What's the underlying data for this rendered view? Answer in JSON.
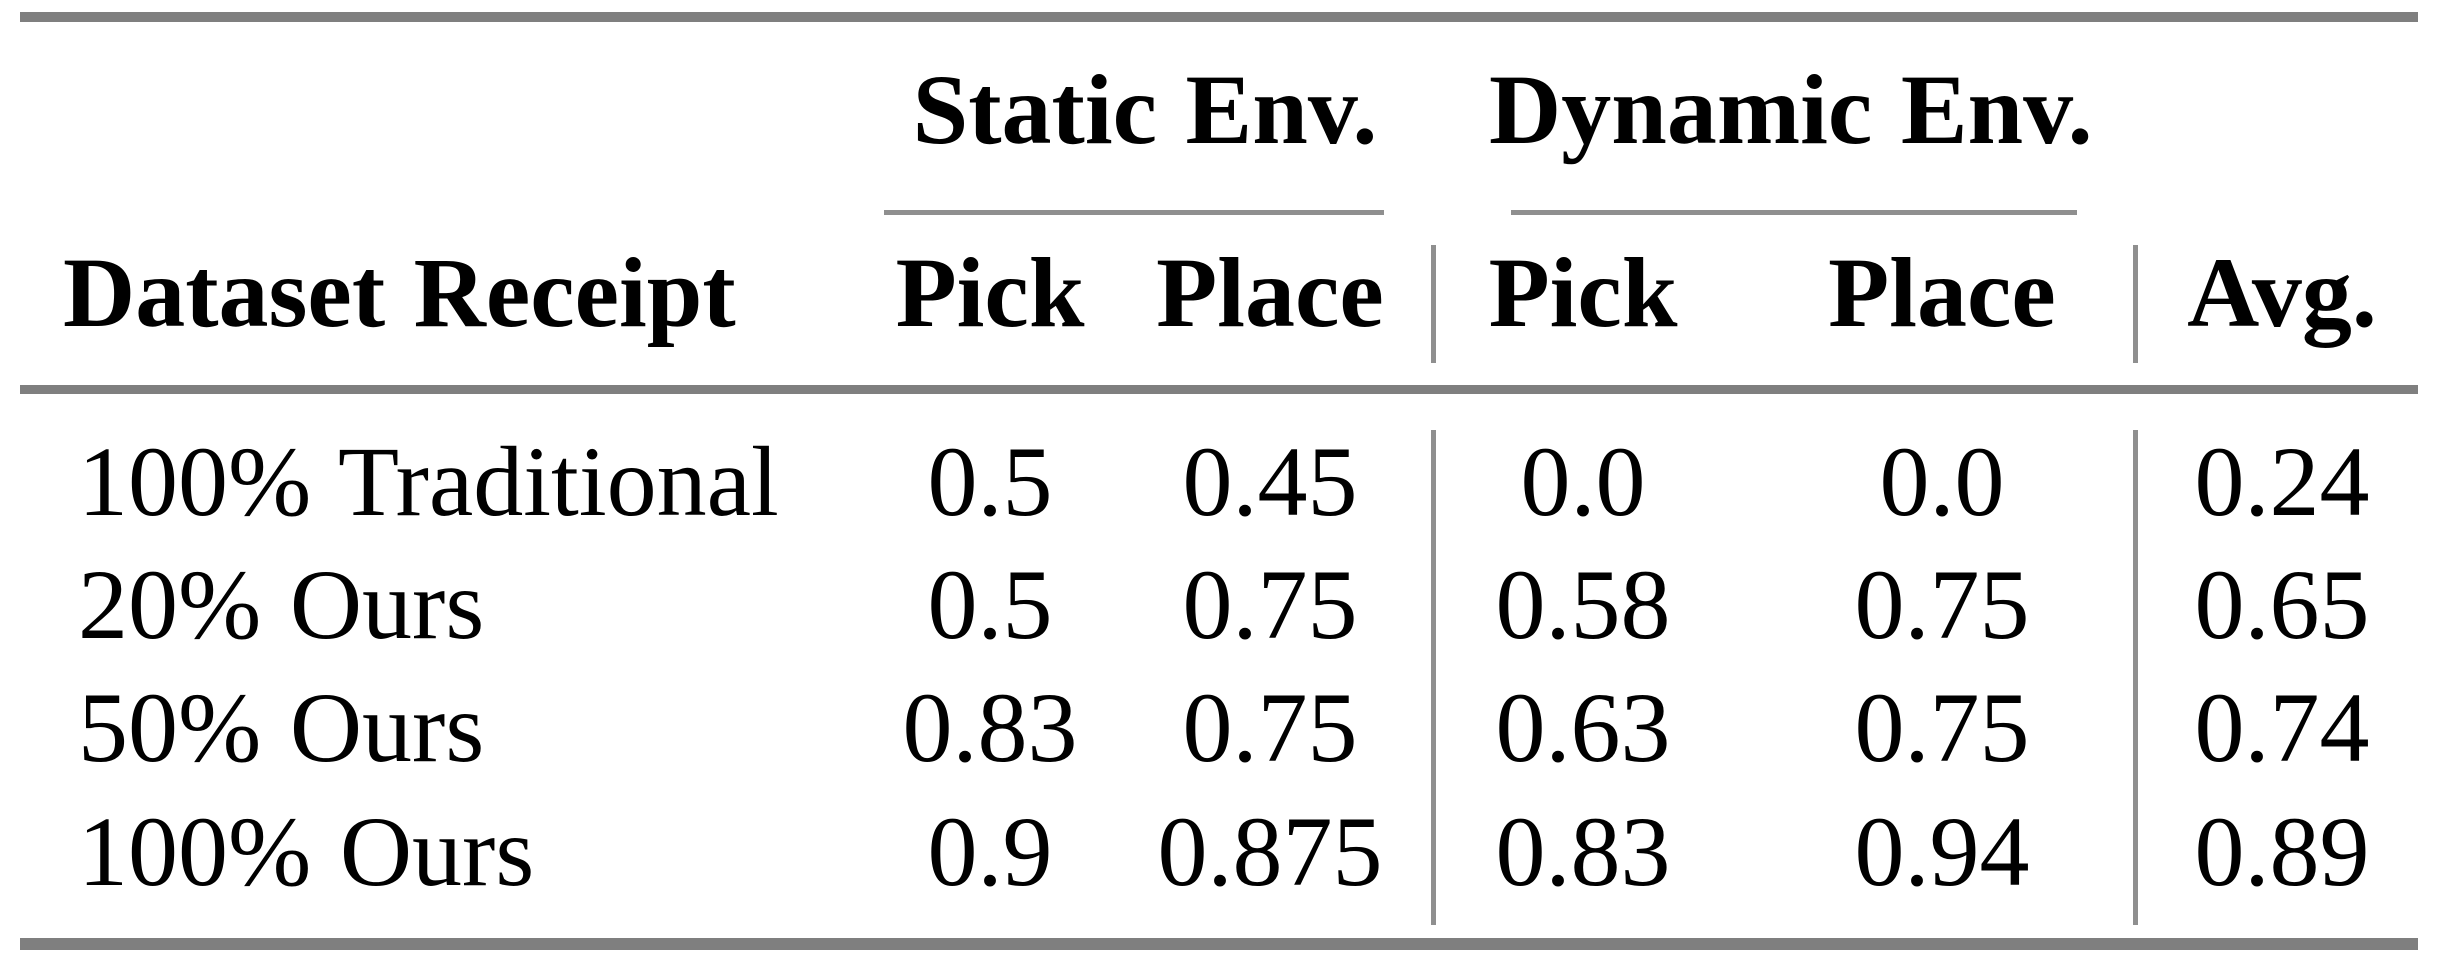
{
  "table": {
    "groups": [
      {
        "label": "Static Env."
      },
      {
        "label": "Dynamic Env."
      }
    ],
    "headers": {
      "dataset": "Dataset Receipt",
      "static_pick": "Pick",
      "static_place": "Place",
      "dyn_pick": "Pick",
      "dyn_place": "Place",
      "avg": "Avg."
    },
    "rows": [
      {
        "label": "100% Traditional",
        "static_pick": "0.5",
        "static_place": "0.45",
        "dyn_pick": "0.0",
        "dyn_place": "0.0",
        "avg": "0.24"
      },
      {
        "label": "20% Ours",
        "static_pick": "0.5",
        "static_place": "0.75",
        "dyn_pick": "0.58",
        "dyn_place": "0.75",
        "avg": "0.65"
      },
      {
        "label": "50% Ours",
        "static_pick": "0.83",
        "static_place": "0.75",
        "dyn_pick": "0.63",
        "dyn_place": "0.75",
        "avg": "0.74"
      },
      {
        "label": "100% Ours",
        "static_pick": "0.9",
        "static_place": "0.875",
        "dyn_pick": "0.83",
        "dyn_place": "0.94",
        "avg": "0.89"
      }
    ]
  },
  "chart_data": {
    "type": "table",
    "columns": [
      "Dataset Receipt",
      "Static Env. Pick",
      "Static Env. Place",
      "Dynamic Env. Pick",
      "Dynamic Env. Place",
      "Avg."
    ],
    "rows": [
      [
        "100% Traditional",
        0.5,
        0.45,
        0.0,
        0.0,
        0.24
      ],
      [
        "20% Ours",
        0.5,
        0.75,
        0.58,
        0.75,
        0.65
      ],
      [
        "50% Ours",
        0.83,
        0.75,
        0.63,
        0.75,
        0.74
      ],
      [
        "100% Ours",
        0.9,
        0.875,
        0.83,
        0.94,
        0.89
      ]
    ]
  },
  "colors": {
    "text": "#000000",
    "background": "#ffffff",
    "thick_rule": "#7f7f7f",
    "thin_rule": "#8f8f8f"
  }
}
